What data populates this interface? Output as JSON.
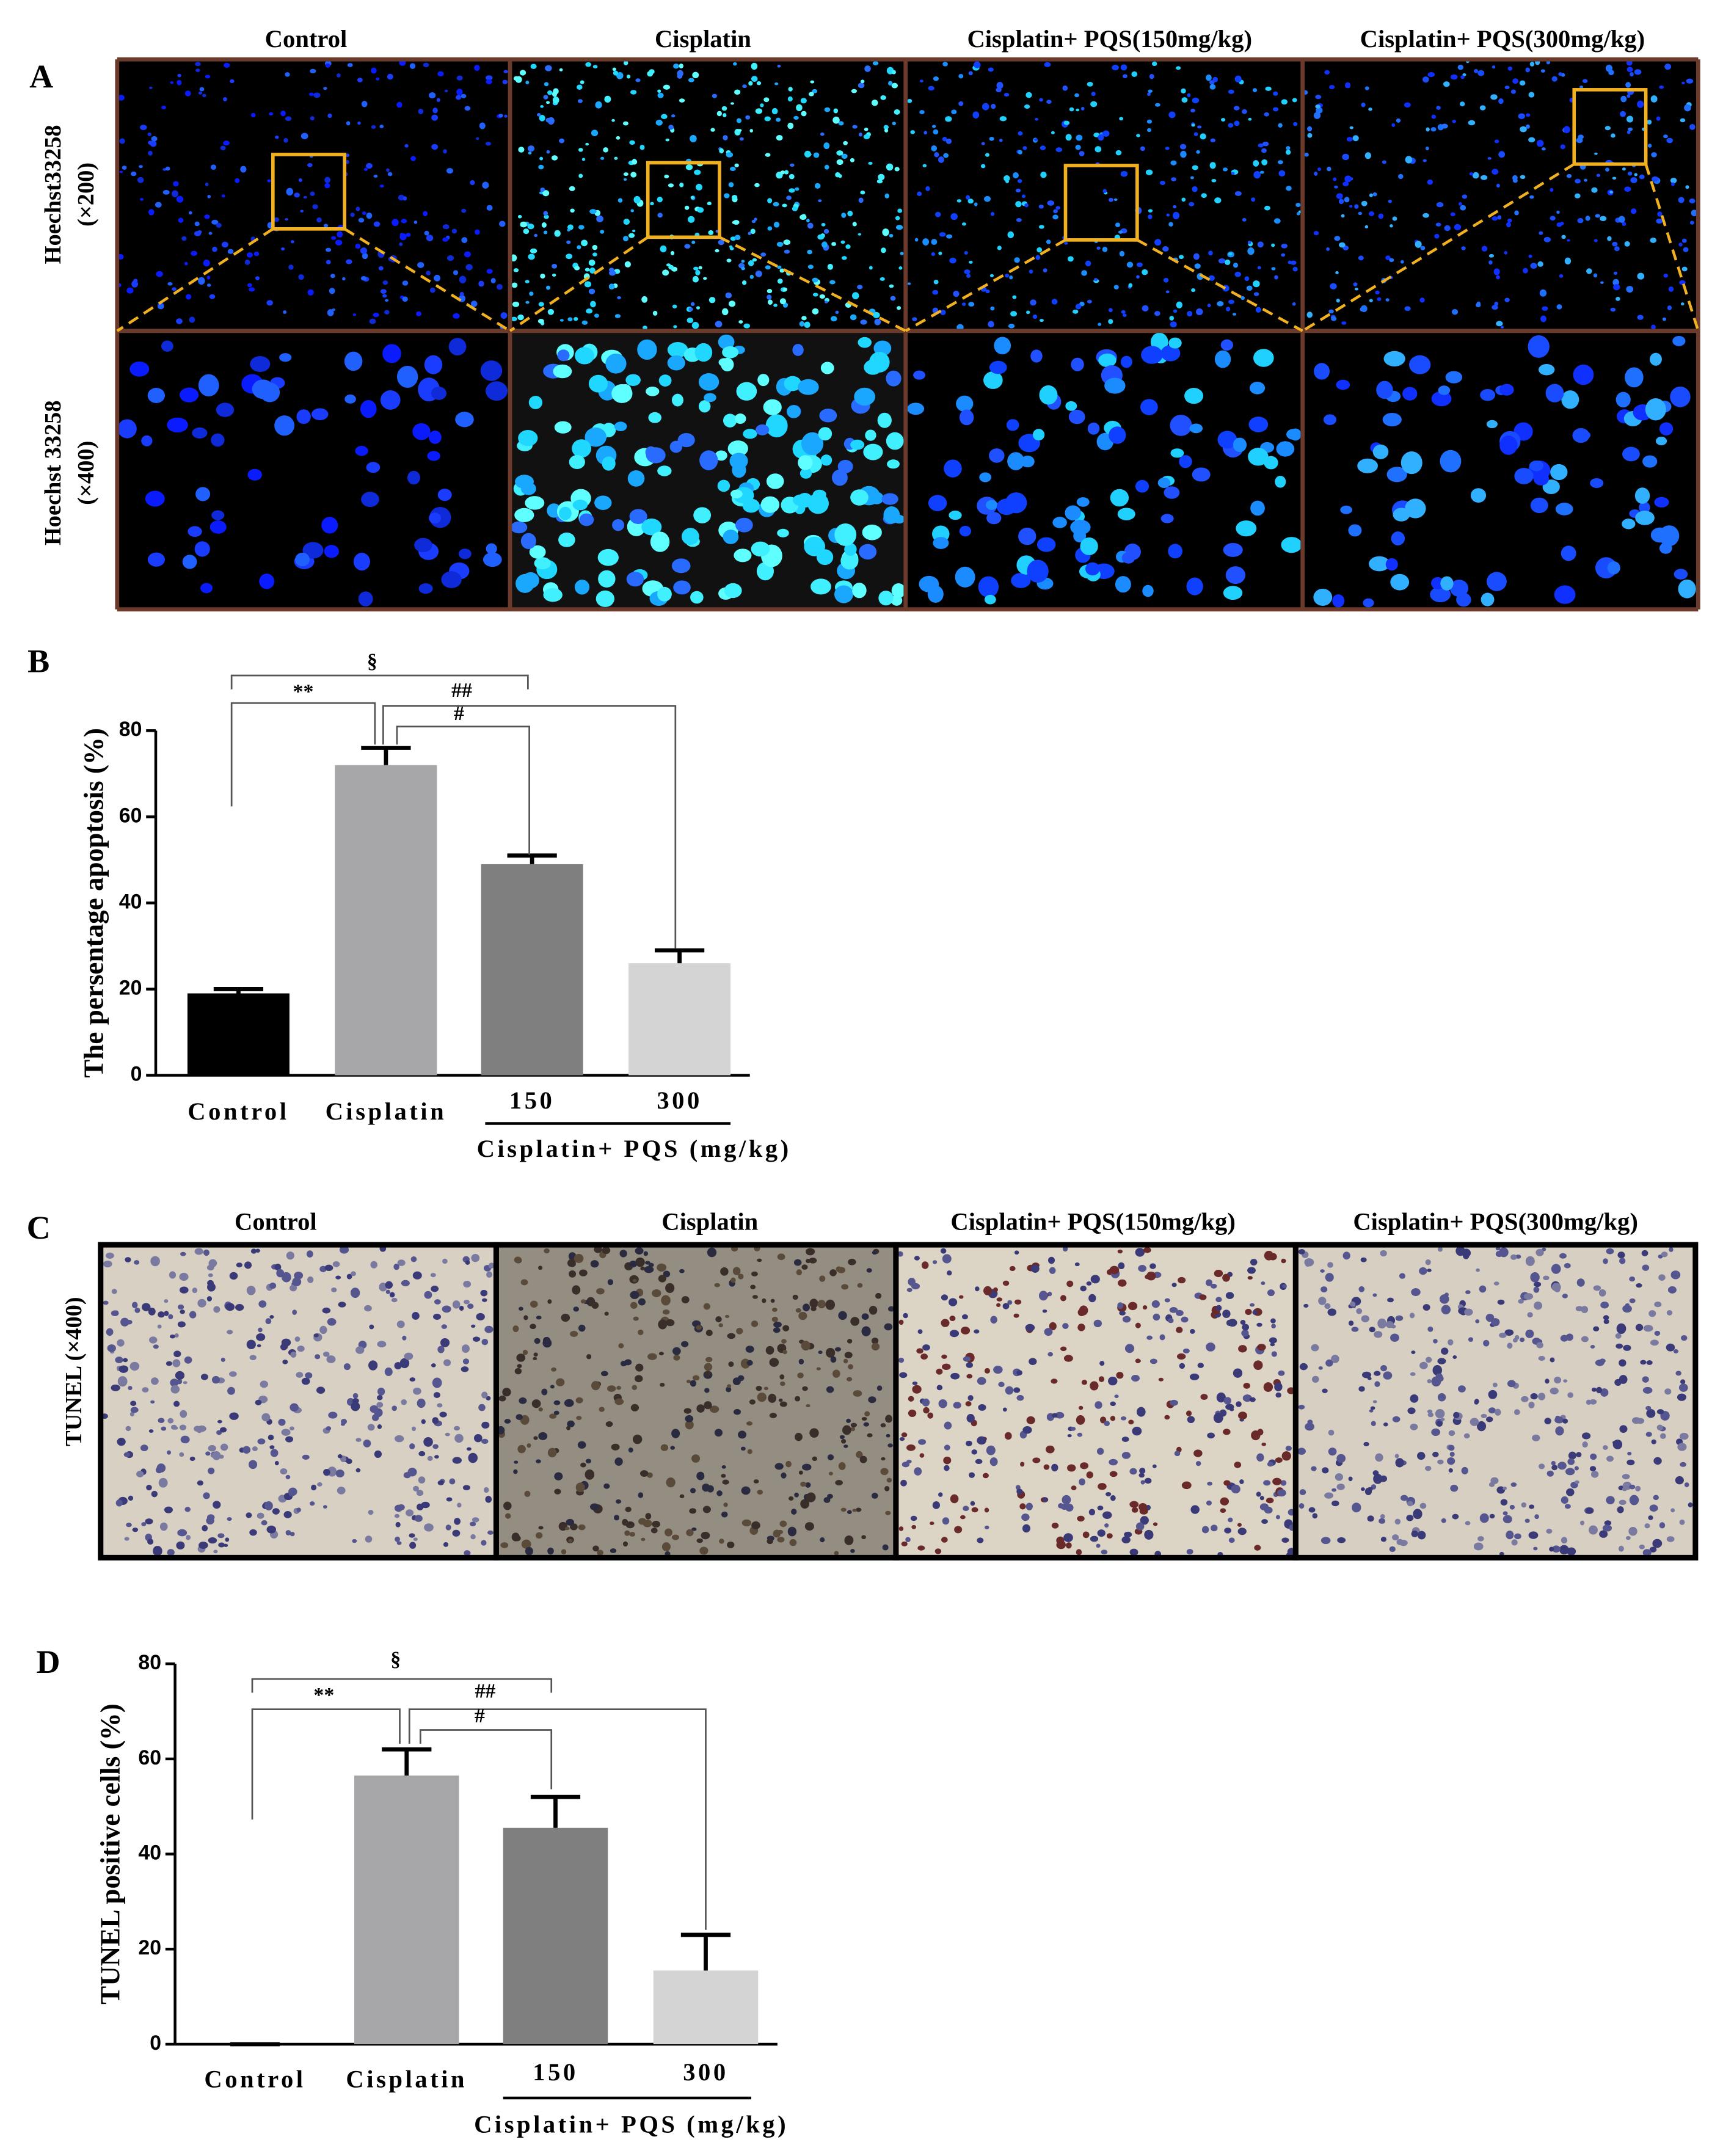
{
  "panel_a": {
    "label": "A",
    "columns": [
      "Control",
      "Cisplatin",
      "Cisplatin+  PQS(150mg/kg)",
      "Cisplatin+  PQS(300mg/kg)"
    ],
    "rows": [
      [
        "Hoechst33258",
        "(×200)"
      ],
      [
        "Hoechst 33258",
        "(×400)"
      ]
    ]
  },
  "panel_c": {
    "label": "C",
    "columns": [
      "Control",
      "Cisplatin",
      "Cisplatin+  PQS(150mg/kg)",
      "Cisplatin+  PQS(300mg/kg)"
    ],
    "rows": [
      "TUNEL (×400)"
    ]
  },
  "chart_data": [
    {
      "type": "bar",
      "panel_label": "B",
      "ylabel": "The persentage apoptosis (%)",
      "categories": [
        "Control",
        "Cisplatin",
        "150",
        "300"
      ],
      "group_label": "Cisplatin+ PQS (mg/kg)",
      "values": [
        19,
        72,
        49,
        26
      ],
      "errors": [
        1,
        4,
        2,
        3
      ],
      "colors": [
        "#000000",
        "#a7a7a9",
        "#7f7f7f",
        "#d4d4d4"
      ],
      "ylim": [
        0,
        80
      ],
      "yticks": [
        0,
        20,
        40,
        60,
        80
      ],
      "annotations": [
        "§",
        "**",
        "##",
        "#"
      ]
    },
    {
      "type": "bar",
      "panel_label": "D",
      "ylabel": "TUNEL positive cells (%)",
      "categories": [
        "Control",
        "Cisplatin",
        "150",
        "300"
      ],
      "group_label": "Cisplatin+ PQS (mg/kg)",
      "values": [
        0,
        56.5,
        45.5,
        15.5
      ],
      "errors": [
        0,
        5.5,
        6.5,
        7.5
      ],
      "colors": [
        "#000000",
        "#a7a7a9",
        "#7f7f7f",
        "#d4d4d4"
      ],
      "ylim": [
        0,
        80
      ],
      "yticks": [
        0,
        20,
        40,
        60,
        80
      ],
      "annotations": [
        "§",
        "**",
        "##",
        "#"
      ]
    }
  ]
}
